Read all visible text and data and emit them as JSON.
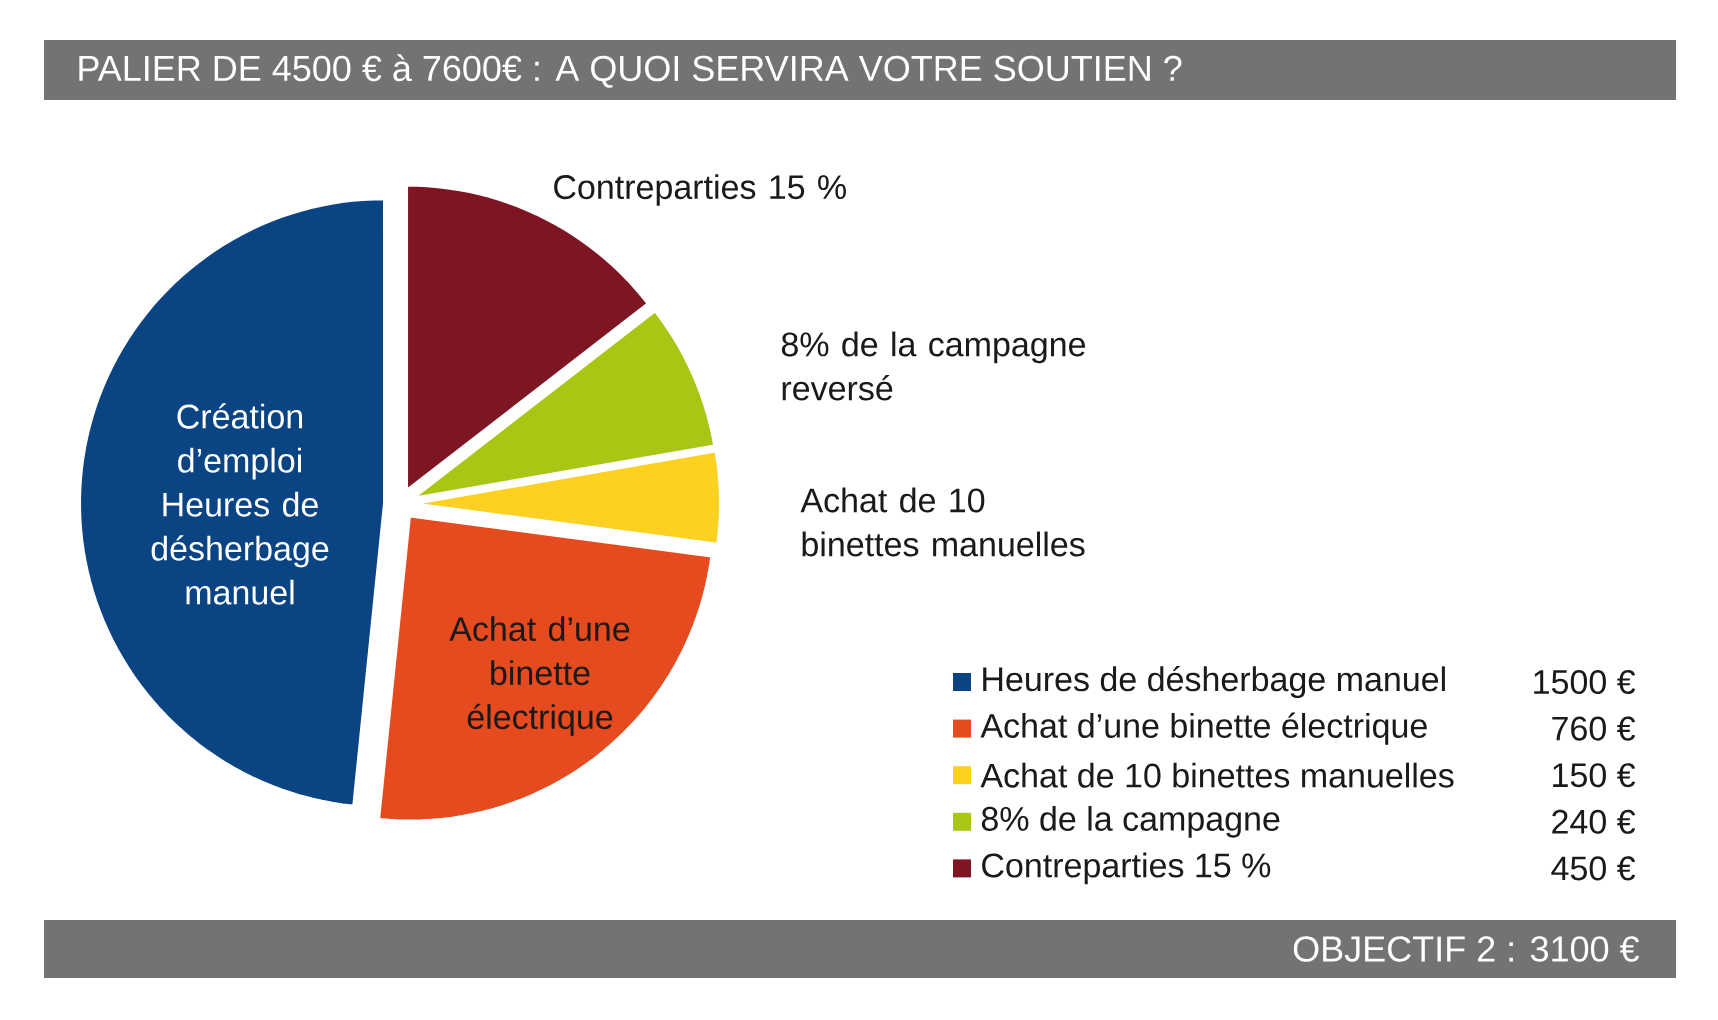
{
  "chart_data": {
    "type": "pie",
    "title": "PALIER DE 4500 € à 7600€ : A QUOI SERVIRA VOTRE SOUTIEN ?",
    "categories": [
      "Heures de désherbage manuel",
      "Achat d’une binette électrique",
      "Achat de 10 binettes manuelles",
      "8% de la campagne",
      "Contreparties 15 %"
    ],
    "values": [
      1500,
      760,
      150,
      240,
      450
    ],
    "value_labels": [
      "1500 €",
      "760 €",
      "150 €",
      "240 €",
      "450 €"
    ],
    "colors": [
      "#0b4482",
      "#e64a1f",
      "#fcd122",
      "#a8c614",
      "#7d1523"
    ],
    "annotations": [
      "Création d’emploi Heures de désherbage manuel",
      "Achat d’une binette électrique",
      "Achat de 10 binettes manuelles",
      "8% de la campagne reversé",
      "Contreparties 15 %",
      "OBJECTIF 2 : 3100 €"
    ],
    "legend": "bottom right"
  }
}
